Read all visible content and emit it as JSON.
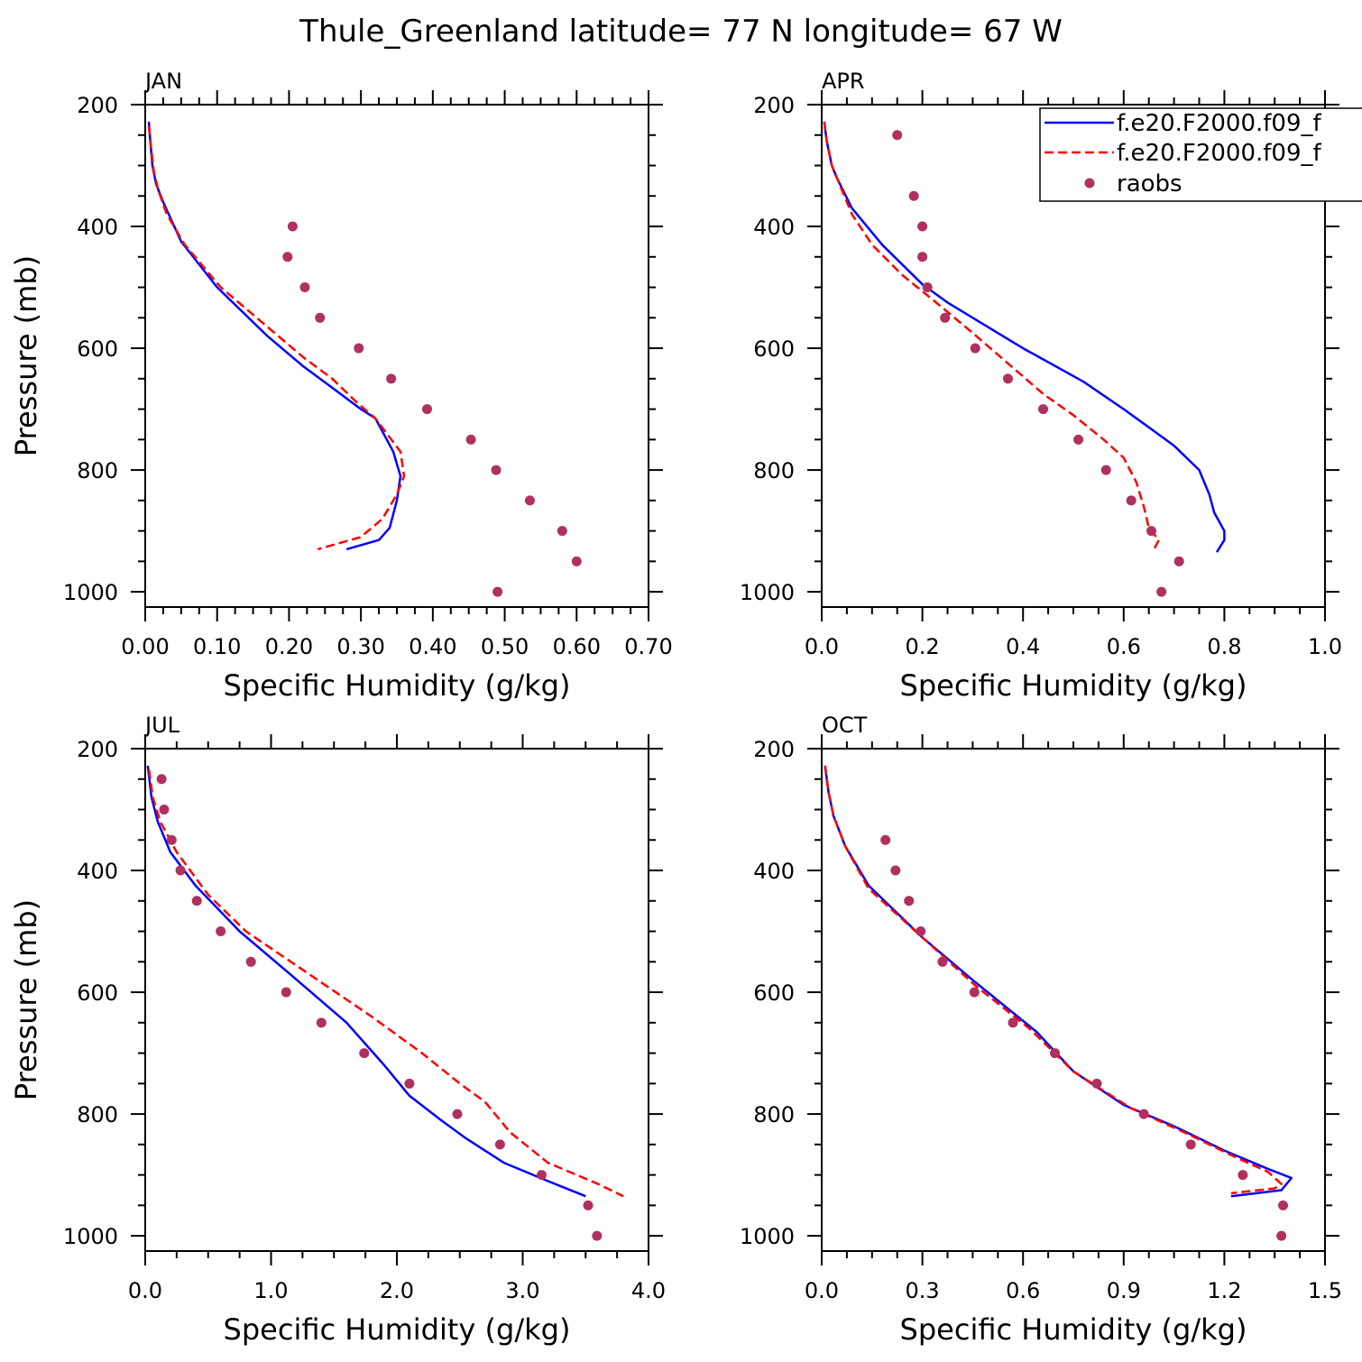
{
  "figure": {
    "title": "Thule_Greenland  latitude= 77 N longitude= 67 W",
    "legend": [
      {
        "label": "f.e20.F2000.f09_f",
        "color": "#0000ff",
        "style": "solid"
      },
      {
        "label": "f.e20.F2000.f09_f",
        "color": "#ff0000",
        "style": "dashed"
      },
      {
        "label": "raobs",
        "color": "#b03060",
        "style": "marker"
      }
    ]
  },
  "chart_data": [
    {
      "type": "line",
      "panel_label": "JAN",
      "xlabel": "Specific Humidity (g/kg)",
      "ylabel": "Pressure (mb)",
      "xlim": [
        0,
        0.7
      ],
      "ylim": [
        200,
        1025
      ],
      "y_inverted": true,
      "xticks": [
        "0.00",
        "0.10",
        "0.20",
        "0.30",
        "0.40",
        "0.50",
        "0.60",
        "0.70"
      ],
      "xtick_values": [
        0,
        0.1,
        0.2,
        0.3,
        0.4,
        0.5,
        0.6,
        0.7
      ],
      "yticks": [
        "200",
        "400",
        "600",
        "800",
        "1000"
      ],
      "ytick_values": [
        200,
        400,
        600,
        800,
        1000
      ],
      "series": [
        {
          "name": "f.e20.F2000.f09_f",
          "color": "#0000ff",
          "style": "solid",
          "x": [
            0.005,
            0.007,
            0.01,
            0.015,
            0.025,
            0.05,
            0.1,
            0.17,
            0.22,
            0.26,
            0.3,
            0.32,
            0.345,
            0.355,
            0.35,
            0.34,
            0.325,
            0.28
          ],
          "y": [
            228,
            260,
            300,
            330,
            360,
            425,
            500,
            580,
            630,
            665,
            700,
            715,
            770,
            810,
            850,
            895,
            915,
            930
          ]
        },
        {
          "name": "f.e20.F2000.f09_f",
          "color": "#ff0000",
          "style": "dashed",
          "x": [
            0.005,
            0.008,
            0.012,
            0.018,
            0.03,
            0.055,
            0.105,
            0.18,
            0.22,
            0.26,
            0.295,
            0.32,
            0.355,
            0.36,
            0.35,
            0.33,
            0.3,
            0.24
          ],
          "y": [
            235,
            270,
            310,
            340,
            380,
            430,
            500,
            575,
            615,
            650,
            690,
            715,
            770,
            810,
            840,
            880,
            910,
            930
          ]
        },
        {
          "name": "raobs",
          "color": "#b03060",
          "style": "marker",
          "x": [
            0.205,
            0.198,
            0.222,
            0.243,
            0.297,
            0.342,
            0.392,
            0.453,
            0.488,
            0.535,
            0.58,
            0.6,
            0.49
          ],
          "y": [
            400,
            450,
            500,
            550,
            600,
            650,
            700,
            750,
            800,
            850,
            900,
            950,
            1000
          ]
        }
      ]
    },
    {
      "type": "line",
      "panel_label": "APR",
      "xlabel": "Specific Humidity (g/kg)",
      "ylabel": "",
      "xlim": [
        0,
        1.0
      ],
      "ylim": [
        200,
        1025
      ],
      "y_inverted": true,
      "xticks": [
        "0.0",
        "0.2",
        "0.4",
        "0.6",
        "0.8",
        "1.0"
      ],
      "xtick_values": [
        0,
        0.2,
        0.4,
        0.6,
        0.8,
        1.0
      ],
      "yticks": [
        "200",
        "400",
        "600",
        "800",
        "1000"
      ],
      "ytick_values": [
        200,
        400,
        600,
        800,
        1000
      ],
      "series": [
        {
          "name": "f.e20.F2000.f09_f",
          "color": "#0000ff",
          "style": "solid",
          "x": [
            0.005,
            0.01,
            0.02,
            0.03,
            0.06,
            0.12,
            0.2,
            0.25,
            0.33,
            0.4,
            0.52,
            0.6,
            0.65,
            0.7,
            0.75,
            0.77,
            0.78,
            0.8,
            0.8,
            0.785
          ],
          "y": [
            228,
            260,
            300,
            320,
            370,
            430,
            495,
            525,
            565,
            600,
            655,
            700,
            730,
            760,
            800,
            840,
            870,
            900,
            915,
            935
          ]
        },
        {
          "name": "f.e20.F2000.f09_f",
          "color": "#ff0000",
          "style": "dashed",
          "x": [
            0.005,
            0.01,
            0.02,
            0.04,
            0.06,
            0.1,
            0.16,
            0.22,
            0.3,
            0.37,
            0.44,
            0.5,
            0.56,
            0.6,
            0.625,
            0.64,
            0.65,
            0.67,
            0.66
          ],
          "y": [
            228,
            260,
            300,
            340,
            380,
            430,
            480,
            520,
            575,
            625,
            675,
            710,
            750,
            780,
            820,
            860,
            895,
            915,
            930
          ]
        },
        {
          "name": "raobs",
          "color": "#b03060",
          "style": "marker",
          "x": [
            0.15,
            0.183,
            0.2,
            0.2,
            0.21,
            0.245,
            0.305,
            0.37,
            0.44,
            0.51,
            0.565,
            0.615,
            0.655,
            0.71,
            0.675
          ],
          "y": [
            250,
            350,
            400,
            450,
            500,
            550,
            600,
            650,
            700,
            750,
            800,
            850,
            900,
            950,
            1000
          ]
        }
      ]
    },
    {
      "type": "line",
      "panel_label": "JUL",
      "xlabel": "Specific Humidity (g/kg)",
      "ylabel": "Pressure (mb)",
      "xlim": [
        0,
        4.0
      ],
      "ylim": [
        200,
        1025
      ],
      "y_inverted": true,
      "xticks": [
        "0.0",
        "1.0",
        "2.0",
        "3.0",
        "4.0"
      ],
      "xtick_values": [
        0,
        1,
        2,
        3,
        4
      ],
      "yticks": [
        "200",
        "400",
        "600",
        "800",
        "1000"
      ],
      "ytick_values": [
        200,
        400,
        600,
        800,
        1000
      ],
      "series": [
        {
          "name": "f.e20.F2000.f09_f",
          "color": "#0000ff",
          "style": "solid",
          "x": [
            0.02,
            0.05,
            0.1,
            0.2,
            0.4,
            0.75,
            1.15,
            1.6,
            1.9,
            2.1,
            2.35,
            2.55,
            2.85,
            3.2,
            3.5
          ],
          "y": [
            228,
            280,
            320,
            370,
            425,
            500,
            570,
            650,
            720,
            770,
            810,
            840,
            880,
            910,
            935
          ]
        },
        {
          "name": "f.e20.F2000.f09_f",
          "color": "#ff0000",
          "style": "dashed",
          "x": [
            0.03,
            0.06,
            0.12,
            0.25,
            0.5,
            0.8,
            1.3,
            1.8,
            2.2,
            2.5,
            2.7,
            2.9,
            3.2,
            3.6,
            3.8
          ],
          "y": [
            235,
            280,
            320,
            370,
            440,
            500,
            570,
            640,
            700,
            750,
            780,
            830,
            880,
            915,
            935
          ]
        },
        {
          "name": "raobs",
          "color": "#b03060",
          "style": "marker",
          "x": [
            0.13,
            0.15,
            0.21,
            0.28,
            0.41,
            0.6,
            0.84,
            1.12,
            1.4,
            1.74,
            2.1,
            2.48,
            2.82,
            3.15,
            3.52,
            3.59
          ],
          "y": [
            250,
            300,
            350,
            400,
            450,
            500,
            550,
            600,
            650,
            700,
            750,
            800,
            850,
            900,
            950,
            1000
          ]
        }
      ]
    },
    {
      "type": "line",
      "panel_label": "OCT",
      "xlabel": "Specific Humidity (g/kg)",
      "ylabel": "",
      "xlim": [
        0,
        1.5
      ],
      "ylim": [
        200,
        1025
      ],
      "y_inverted": true,
      "xticks": [
        "0.0",
        "0.3",
        "0.6",
        "0.9",
        "1.2",
        "1.5"
      ],
      "xtick_values": [
        0,
        0.3,
        0.6,
        0.9,
        1.2,
        1.5
      ],
      "yticks": [
        "200",
        "400",
        "600",
        "800",
        "1000"
      ],
      "ytick_values": [
        200,
        400,
        600,
        800,
        1000
      ],
      "series": [
        {
          "name": "f.e20.F2000.f09_f",
          "color": "#0000ff",
          "style": "solid",
          "x": [
            0.01,
            0.02,
            0.035,
            0.07,
            0.14,
            0.3,
            0.45,
            0.64,
            0.75,
            0.9,
            1.05,
            1.2,
            1.33,
            1.4,
            1.37,
            1.22
          ],
          "y": [
            228,
            270,
            310,
            360,
            425,
            510,
            580,
            665,
            730,
            785,
            820,
            860,
            890,
            905,
            925,
            935
          ]
        },
        {
          "name": "f.e20.F2000.f09_f",
          "color": "#ff0000",
          "style": "dashed",
          "x": [
            0.01,
            0.02,
            0.035,
            0.07,
            0.14,
            0.3,
            0.46,
            0.62,
            0.75,
            0.92,
            1.08,
            1.23,
            1.33,
            1.37,
            1.35,
            1.22
          ],
          "y": [
            228,
            270,
            310,
            360,
            430,
            510,
            590,
            660,
            730,
            790,
            830,
            870,
            895,
            915,
            922,
            930
          ]
        },
        {
          "name": "raobs",
          "color": "#b03060",
          "style": "marker",
          "x": [
            0.19,
            0.22,
            0.26,
            0.295,
            0.36,
            0.455,
            0.57,
            0.695,
            0.82,
            0.96,
            1.1,
            1.255,
            1.375,
            1.37
          ],
          "y": [
            350,
            400,
            450,
            500,
            550,
            600,
            650,
            700,
            750,
            800,
            850,
            900,
            950,
            1000
          ]
        }
      ]
    }
  ]
}
